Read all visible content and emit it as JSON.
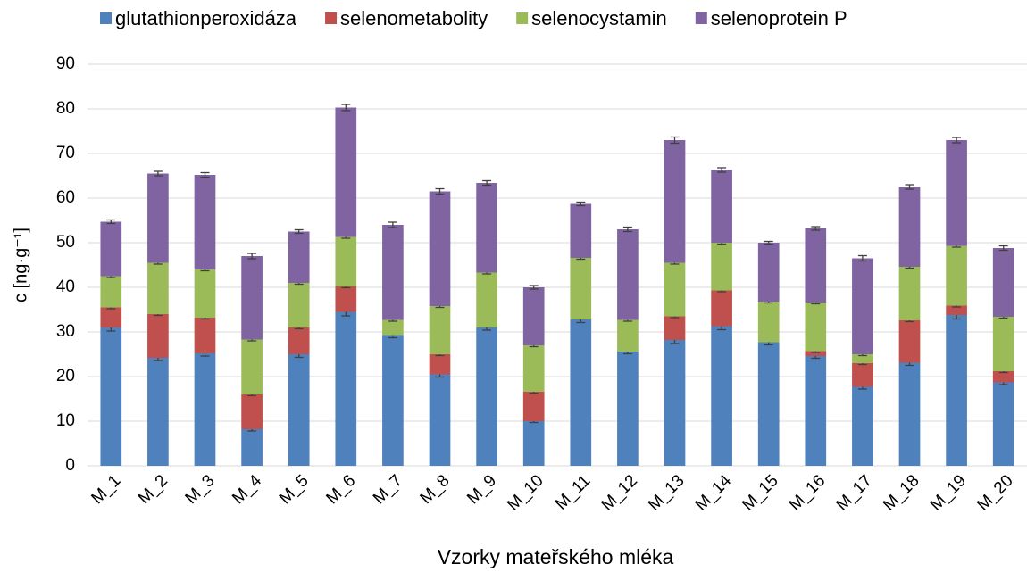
{
  "chart_data": {
    "type": "stacked_bar",
    "x_label": "Vzorky mateřského mléka",
    "y_label": "c [ng·g⁻¹]",
    "categories": [
      "M_1",
      "M_2",
      "M_3",
      "M_4",
      "M_5",
      "M_6",
      "M_7",
      "M_8",
      "M_9",
      "M_10",
      "M_11",
      "M_12",
      "M_13",
      "M_14",
      "M_15",
      "M_16",
      "M_17",
      "M_18",
      "M_19",
      "M_20"
    ],
    "series": [
      {
        "name": "glutathionperoxidáza",
        "color": "#4f81bd",
        "values": [
          31,
          24.2,
          25.2,
          8.2,
          25,
          34.5,
          29.3,
          20.5,
          31,
          10,
          32.8,
          25.6,
          28.2,
          31.3,
          27.7,
          24.6,
          17.7,
          23.1,
          33.8,
          18.7
        ],
        "errors": [
          0.8,
          0.6,
          0.6,
          0.4,
          0.7,
          0.9,
          0.6,
          0.6,
          0.6,
          0.3,
          0.7,
          0.5,
          0.8,
          0.8,
          0.6,
          0.5,
          0.5,
          0.6,
          0.9,
          0.5
        ]
      },
      {
        "name": "selenometabolity",
        "color": "#c0504d",
        "values": [
          4.5,
          9.8,
          8,
          7.8,
          6,
          5.7,
          0,
          4.5,
          0,
          6.6,
          0,
          0,
          5.3,
          8,
          0,
          1.1,
          5.3,
          9.5,
          2.1,
          2.5
        ],
        "errors": [
          0.3,
          0.3,
          0.3,
          0.3,
          0.3,
          0.3,
          0,
          0.3,
          0,
          0.3,
          0,
          0,
          0.3,
          0.3,
          0,
          0.3,
          0.3,
          0.3,
          0.3,
          0.3
        ]
      },
      {
        "name": "selenocystamin",
        "color": "#9bbb59",
        "values": [
          7,
          11.5,
          10.8,
          12.3,
          10,
          11.1,
          3.4,
          10.8,
          12.3,
          10.4,
          13.8,
          7.1,
          12,
          10.7,
          9.1,
          10.9,
          2,
          12,
          13.4,
          12.2
        ],
        "errors": [
          0.3,
          0.3,
          0.3,
          0.3,
          0.3,
          0.3,
          0.3,
          0.3,
          0.3,
          0.3,
          0.3,
          0.3,
          0.3,
          0.3,
          0.3,
          0.3,
          0.3,
          0.3,
          0.3,
          0.3
        ]
      },
      {
        "name": "selenoprotein P",
        "color": "#8064a2",
        "values": [
          12.2,
          20,
          21.2,
          18.7,
          11.5,
          29,
          21.3,
          25.7,
          20.1,
          13,
          12.1,
          20.3,
          27.5,
          16.3,
          13.2,
          16.6,
          21.5,
          17.9,
          23.7,
          15.4
        ],
        "errors": [
          0.4,
          0.5,
          0.5,
          0.6,
          0.4,
          0.7,
          0.6,
          0.6,
          0.5,
          0.4,
          0.4,
          0.5,
          0.7,
          0.5,
          0.3,
          0.4,
          0.6,
          0.5,
          0.6,
          0.5
        ]
      }
    ],
    "ylim": [
      0,
      90
    ],
    "yticks": [
      0,
      10,
      20,
      30,
      40,
      50,
      60,
      70,
      80,
      90
    ],
    "grid": true,
    "legend": "top"
  }
}
